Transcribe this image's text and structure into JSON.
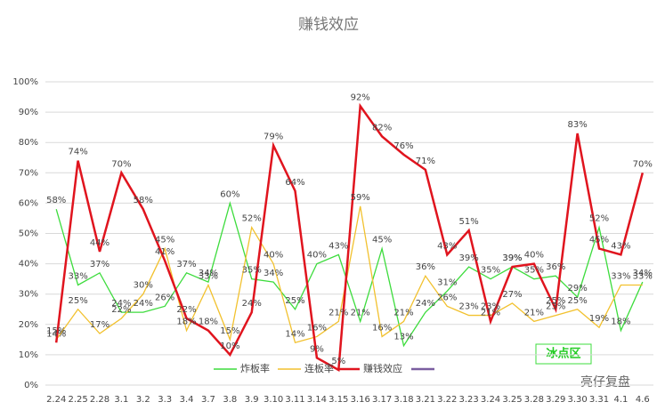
{
  "chart_data": {
    "type": "line",
    "title": "赚钱效应",
    "categories": [
      "2.24",
      "2.25",
      "2.28",
      "3.1",
      "3.2",
      "3.3",
      "3.4",
      "3.7",
      "3.8",
      "3.9",
      "3.10",
      "3.11",
      "3.14",
      "3.15",
      "3.16",
      "3.17",
      "3.18",
      "3.21",
      "3.22",
      "3.23",
      "3.24",
      "3.25",
      "3.28",
      "3.29",
      "3.30",
      "3.31",
      "4.1",
      "4.6"
    ],
    "series": [
      {
        "name": "炸板率",
        "color": "#3ddc3d",
        "values": [
          58,
          33,
          37,
          24,
          24,
          26,
          37,
          34,
          60,
          35,
          34,
          25,
          40,
          43,
          21,
          45,
          13,
          24,
          31,
          39,
          35,
          39,
          35,
          36,
          29,
          52,
          18,
          34
        ],
        "value_labels": [
          "58%",
          "33%",
          "37%",
          "24%",
          "24%",
          "26%",
          "37%",
          "34%",
          "60%",
          "35%",
          "34%",
          "25%",
          "40%",
          "43%",
          "21%",
          "45%",
          "13%",
          "24%",
          "31%",
          "39%",
          "35%",
          "39%",
          "35%",
          "36%",
          "29%",
          "52%",
          "18%",
          "34%"
        ]
      },
      {
        "name": "连板率",
        "color": "#f2c12e",
        "values": [
          15,
          25,
          17,
          22,
          30,
          45,
          18,
          33,
          15,
          52,
          40,
          14,
          16,
          21,
          59,
          16,
          21,
          36,
          26,
          23,
          23,
          27,
          21,
          23,
          25,
          19,
          33,
          33
        ],
        "value_labels": [
          "15%",
          "25%",
          "17%",
          "22%",
          "30%",
          "45%",
          "18%",
          "33%",
          "15%",
          "52%",
          "40%",
          "14%",
          "16%",
          "21%",
          "59%",
          "16%",
          "21%",
          "36%",
          "26%",
          "23%",
          "23%",
          "27%",
          "21%",
          "23%",
          "25%",
          "19%",
          "33%",
          "33%"
        ]
      },
      {
        "name": "赚钱效应",
        "color": "#e0141e",
        "values": [
          14,
          74,
          44,
          70,
          58,
          41,
          22,
          18,
          10,
          24,
          79,
          64,
          9,
          5,
          92,
          82,
          76,
          71,
          43,
          51,
          21,
          39,
          40,
          25,
          83,
          45,
          43,
          70
        ],
        "value_labels": [
          "14%",
          "74%",
          "44%",
          "70%",
          "58%",
          "41%",
          "22%",
          "18%",
          "10%",
          "24%",
          "79%",
          "64%",
          "9%",
          "5%",
          "92%",
          "82%",
          "76%",
          "71%",
          "43%",
          "51%",
          "21%",
          "39%",
          "40%",
          "25%",
          "83%",
          "45%",
          "43%",
          "70%"
        ]
      }
    ],
    "ylim": [
      0,
      100
    ],
    "yticks": [
      {
        "value": 0,
        "label": "0%"
      },
      {
        "value": 10,
        "label": "10%"
      },
      {
        "value": 20,
        "label": "20%"
      },
      {
        "value": 30,
        "label": "30%"
      },
      {
        "value": 40,
        "label": "40%"
      },
      {
        "value": 50,
        "label": "50%"
      },
      {
        "value": 60,
        "label": "60%"
      },
      {
        "value": 70,
        "label": "70%"
      },
      {
        "value": 80,
        "label": "80%"
      },
      {
        "value": 90,
        "label": "90%"
      },
      {
        "value": 100,
        "label": "100%"
      }
    ],
    "grid": true,
    "annotations": [
      "冰点区",
      "亮仔复盘"
    ]
  }
}
